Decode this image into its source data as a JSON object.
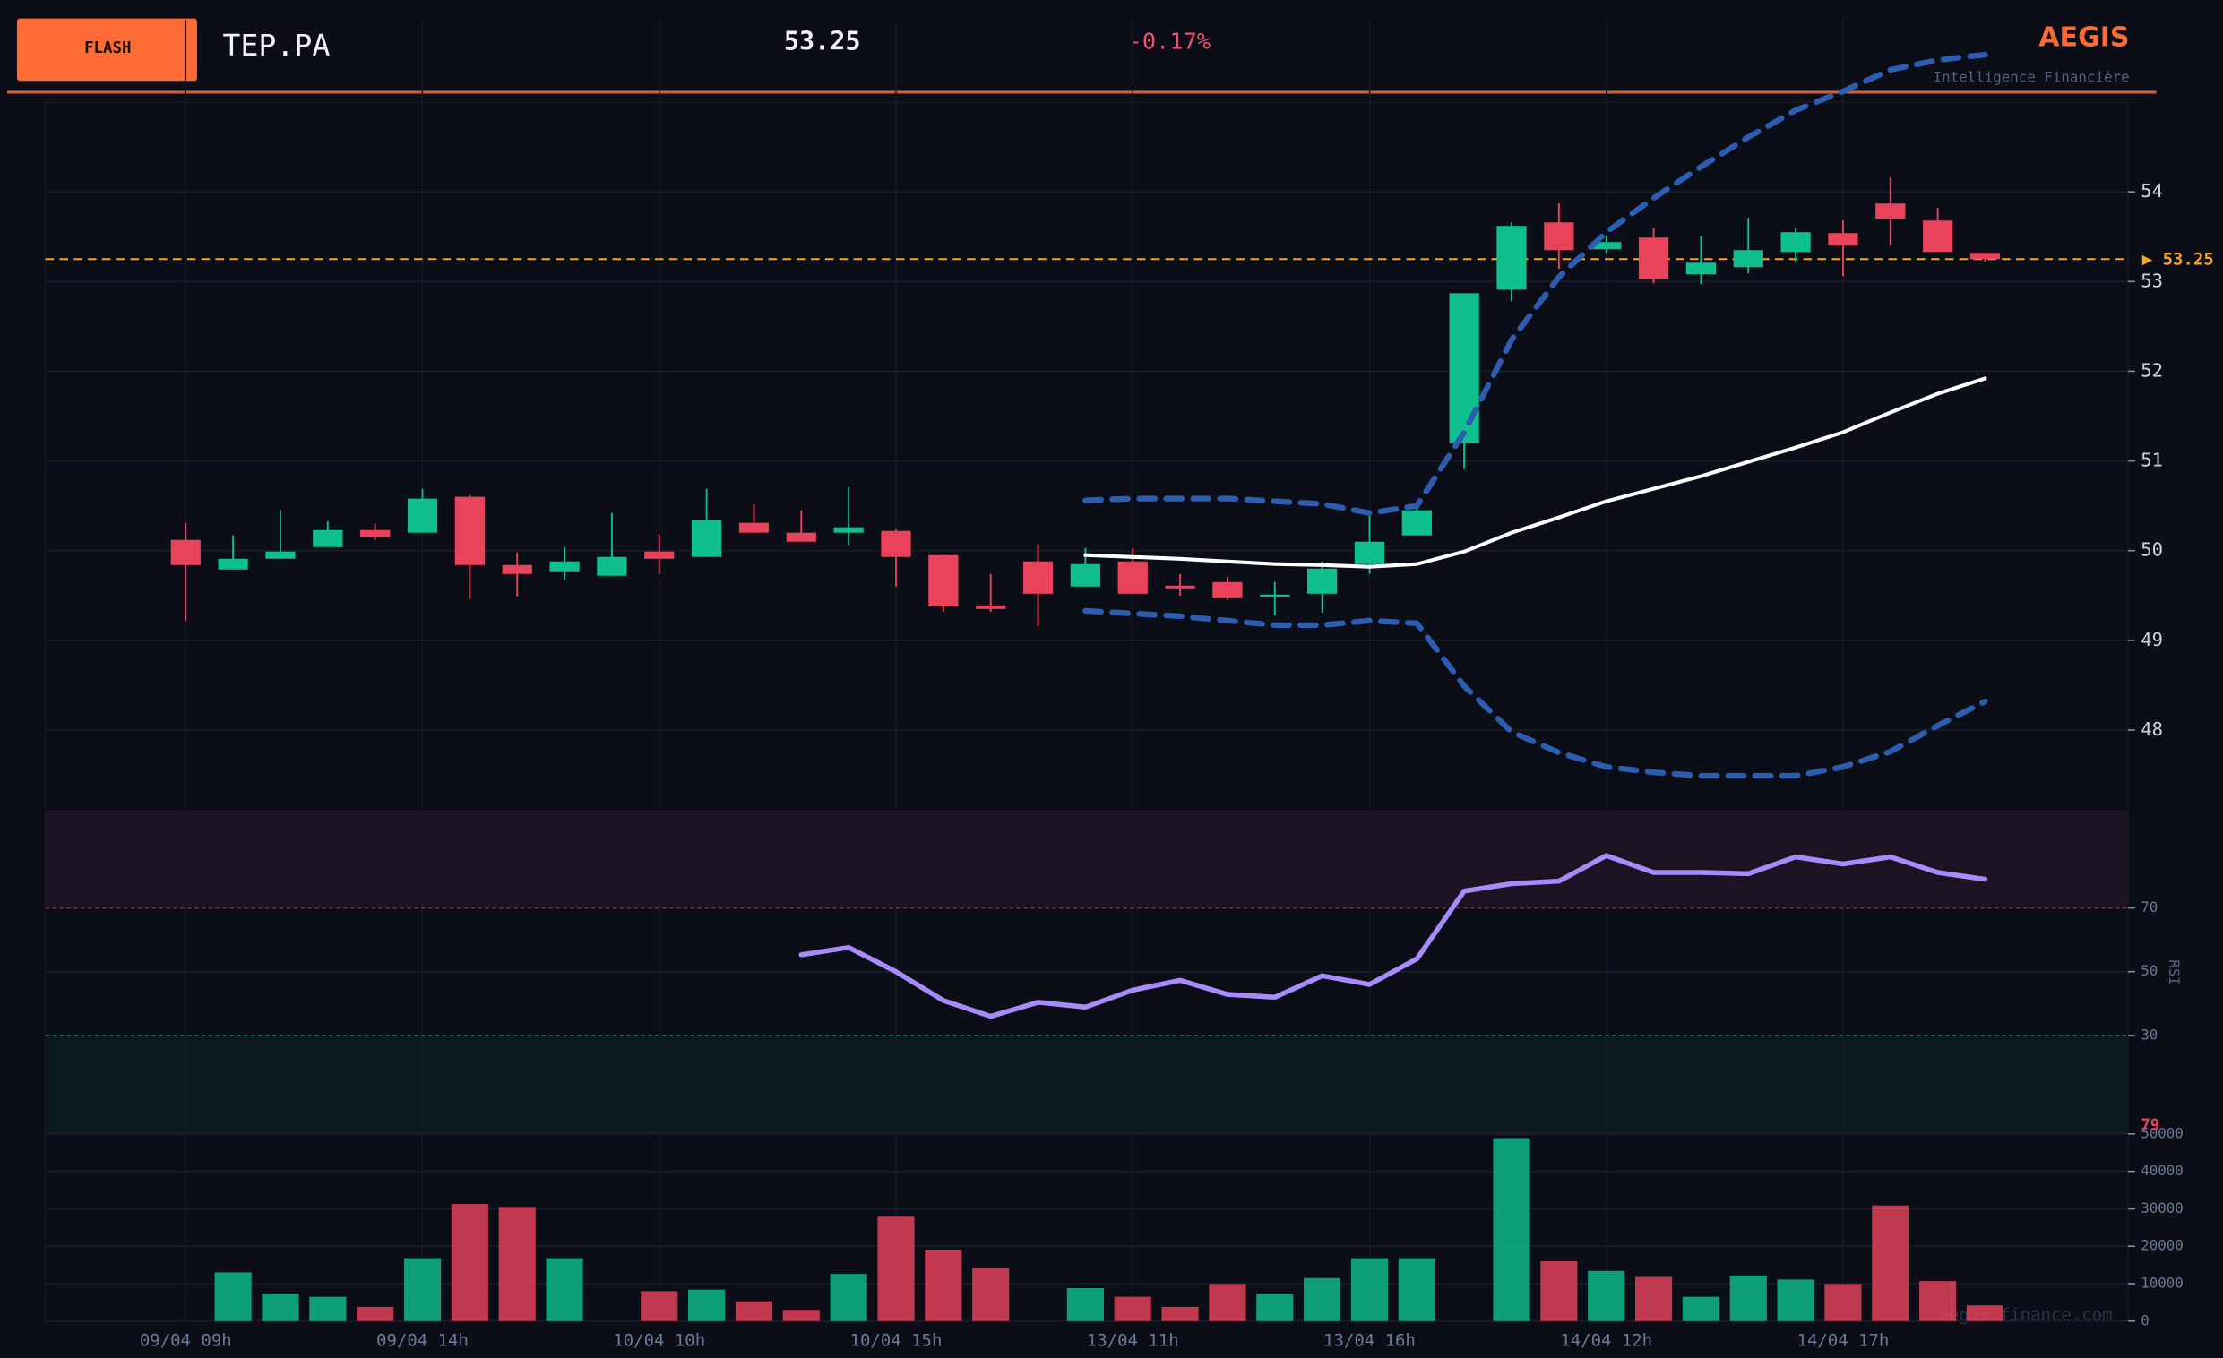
{
  "header": {
    "badge": "FLASH",
    "ticker": "TEP.PA",
    "change": "-0.17%",
    "brand": "AEGIS",
    "brand_subtitle": "Intelligence Financière"
  },
  "footer": {
    "watermark": "aegis-finance.com"
  },
  "chart_data": {
    "type": "candlestick",
    "categories": [
      "09/04 09h",
      null,
      null,
      null,
      null,
      "09/04 14h",
      null,
      null,
      null,
      null,
      "10/04 10h",
      null,
      null,
      null,
      null,
      "10/04 15h",
      null,
      null,
      null,
      null,
      "13/04 11h",
      null,
      null,
      null,
      null,
      "13/04 16h",
      null,
      null,
      null,
      null,
      "14/04 12h",
      null,
      null,
      null,
      null,
      "14/04 17h",
      null,
      null,
      null
    ],
    "open": [
      50.12,
      49.79,
      49.91,
      50.04,
      50.23,
      50.2,
      50.6,
      49.84,
      49.77,
      49.72,
      49.99,
      49.93,
      50.31,
      50.2,
      50.2,
      50.22,
      49.95,
      49.39,
      49.88,
      49.6,
      49.88,
      49.61,
      49.65,
      49.5,
      49.52,
      49.85,
      50.17,
      51.2,
      52.91,
      53.66,
      53.36,
      53.49,
      53.08,
      53.16,
      53.33,
      53.54,
      53.87,
      53.68,
      53.32
    ],
    "high": [
      50.31,
      50.17,
      50.45,
      50.33,
      50.3,
      50.69,
      50.62,
      49.98,
      50.04,
      50.42,
      50.18,
      50.69,
      50.52,
      50.45,
      50.71,
      50.24,
      49.95,
      49.74,
      50.07,
      50.03,
      50.03,
      49.74,
      49.71,
      49.65,
      49.88,
      50.39,
      50.5,
      52.87,
      53.66,
      53.87,
      53.51,
      53.6,
      53.51,
      53.71,
      53.6,
      53.68,
      54.16,
      53.82,
      53.32
    ],
    "low": [
      49.22,
      49.79,
      49.91,
      50.04,
      50.12,
      50.2,
      49.46,
      49.49,
      49.68,
      49.72,
      49.74,
      49.93,
      50.2,
      50.1,
      50.06,
      49.6,
      49.32,
      49.32,
      49.16,
      49.6,
      49.52,
      49.5,
      49.45,
      49.28,
      49.31,
      49.74,
      50.17,
      50.91,
      52.78,
      53.14,
      53.32,
      52.98,
      52.97,
      53.09,
      53.21,
      53.06,
      53.4,
      53.33,
      53.22
    ],
    "close": [
      49.84,
      49.91,
      49.99,
      50.23,
      50.15,
      50.58,
      49.84,
      49.74,
      49.88,
      49.93,
      49.91,
      50.34,
      50.2,
      50.1,
      50.26,
      49.93,
      49.38,
      49.35,
      49.52,
      49.85,
      49.52,
      49.58,
      49.47,
      49.51,
      49.8,
      50.1,
      50.45,
      52.87,
      53.62,
      53.35,
      53.44,
      53.03,
      53.21,
      53.35,
      53.55,
      53.4,
      53.7,
      53.33,
      53.25
    ],
    "up_color": "#10bf8e",
    "down_color": "#e8435a",
    "ylim": [
      47.1,
      55.0
    ],
    "yticks": [
      48,
      49,
      50,
      51,
      52,
      53,
      54
    ],
    "last_price": 53.25,
    "sma": {
      "color": "#ffffff",
      "values": [
        null,
        null,
        null,
        null,
        null,
        null,
        null,
        null,
        null,
        null,
        null,
        null,
        null,
        null,
        null,
        null,
        null,
        null,
        null,
        49.95,
        49.93,
        49.91,
        49.88,
        49.85,
        49.84,
        49.82,
        49.85,
        49.99,
        50.2,
        50.37,
        50.55,
        50.69,
        50.83,
        50.99,
        51.15,
        51.32,
        51.54,
        51.75,
        51.92
      ]
    },
    "bb_upper": {
      "color": "#2d5db0",
      "values": [
        null,
        null,
        null,
        null,
        null,
        null,
        null,
        null,
        null,
        null,
        null,
        null,
        null,
        null,
        null,
        null,
        null,
        null,
        null,
        50.56,
        50.58,
        50.58,
        50.58,
        50.55,
        50.52,
        50.42,
        50.5,
        51.32,
        52.35,
        53.05,
        53.55,
        53.93,
        54.28,
        54.61,
        54.91,
        55.12,
        55.36,
        55.47,
        55.53
      ]
    },
    "bb_lower": {
      "color": "#2d5db0",
      "values": [
        null,
        null,
        null,
        null,
        null,
        null,
        null,
        null,
        null,
        null,
        null,
        null,
        null,
        null,
        null,
        null,
        null,
        null,
        null,
        49.33,
        49.3,
        49.27,
        49.22,
        49.17,
        49.17,
        49.22,
        49.19,
        48.49,
        47.98,
        47.75,
        47.59,
        47.53,
        47.49,
        47.49,
        47.49,
        47.59,
        47.76,
        48.05,
        48.32
      ]
    },
    "rsi": {
      "label": "RSI",
      "color": "#a78bfa",
      "ylim": [
        0,
        100
      ],
      "yticks": [
        30,
        50,
        70
      ],
      "values": [
        null,
        null,
        null,
        null,
        null,
        null,
        null,
        null,
        null,
        null,
        null,
        null,
        null,
        55.3,
        57.6,
        50,
        41,
        36,
        40.4,
        38.9,
        44.2,
        47.3,
        42.9,
        42,
        48.7,
        46,
        54,
        75.3,
        77.6,
        78.4,
        86.4,
        81.1,
        81.1,
        80.7,
        86,
        83.8,
        86,
        81.1,
        79
      ]
    },
    "volume": {
      "ylim": [
        0,
        50000
      ],
      "yticks": [
        0,
        10000,
        20000,
        30000,
        40000,
        50000
      ],
      "values": [
        0,
        13000,
        7300,
        6500,
        3800,
        16800,
        31300,
        30500,
        16800,
        0,
        8000,
        8400,
        5300,
        3000,
        12600,
        27900,
        19100,
        14100,
        0,
        8800,
        6500,
        3800,
        9900,
        7300,
        11500,
        16800,
        16800,
        0,
        48900,
        16000,
        13400,
        11800,
        6500,
        12200,
        11100,
        9900,
        30900,
        10700,
        4200
      ]
    }
  }
}
